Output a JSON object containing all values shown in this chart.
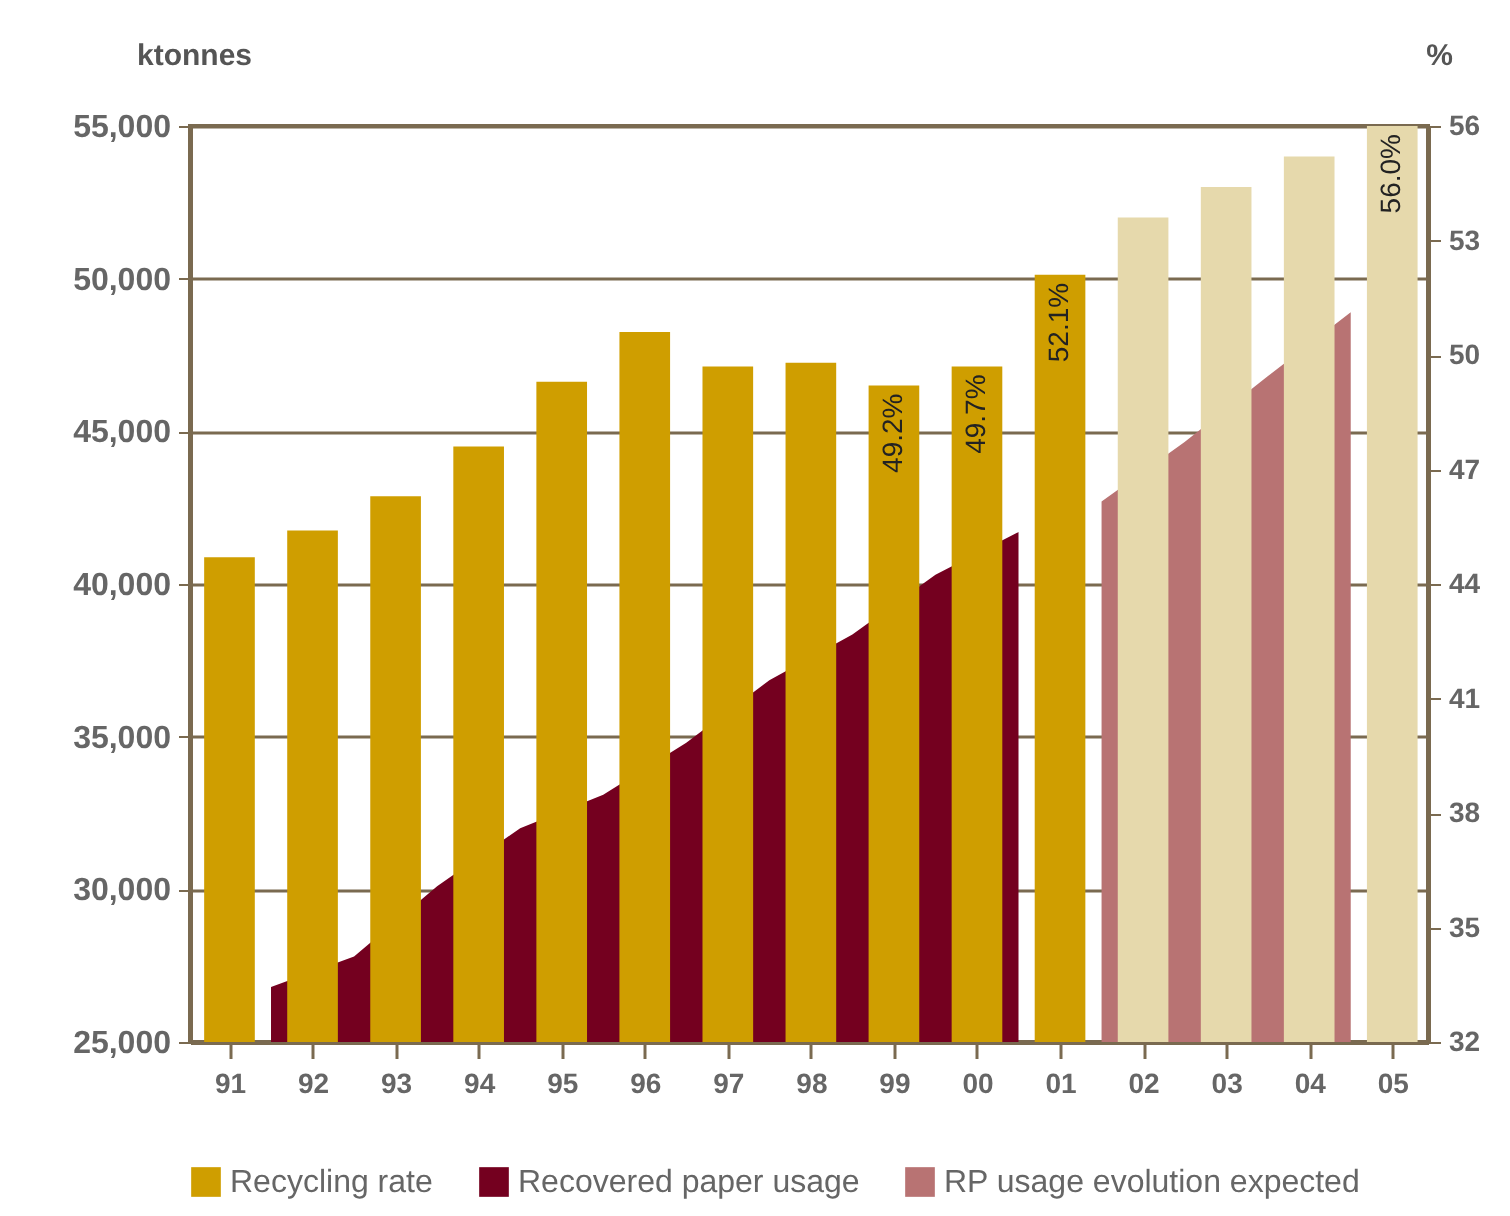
{
  "chart_data": {
    "type": "bar",
    "ylabel": "ktonnes",
    "y2label": "%",
    "x": [
      1991,
      1992,
      1993,
      1994,
      1995,
      1996,
      1997,
      1998,
      1999,
      2000,
      2001,
      2002,
      2003,
      2004,
      2005
    ],
    "xlim": [
      1990.645,
      2005.31
    ],
    "xticks": [
      {
        "value": 1991,
        "label": "91"
      },
      {
        "value": 1992,
        "label": "92"
      },
      {
        "value": 1993,
        "label": "93"
      },
      {
        "value": 1994,
        "label": "94"
      },
      {
        "value": 1995,
        "label": "95"
      },
      {
        "value": 1996,
        "label": "96"
      },
      {
        "value": 1997,
        "label": "97"
      },
      {
        "value": 1998,
        "label": "98"
      },
      {
        "value": 1999,
        "label": "99"
      },
      {
        "value": 2000,
        "label": "00"
      },
      {
        "value": 2001,
        "label": "01"
      },
      {
        "value": 2002,
        "label": "02"
      },
      {
        "value": 2003,
        "label": "03"
      },
      {
        "value": 2004,
        "label": "04"
      },
      {
        "value": 2005,
        "label": "05"
      }
    ],
    "series": [
      {
        "name": "Recycling rate",
        "axis": "y2",
        "color": "#cf9e00",
        "colors": [
          "#cf9e00",
          "#cf9e00",
          "#cf9e00",
          "#cf9e00",
          "#cf9e00",
          "#cf9e00",
          "#cf9e00",
          "#cf9e00",
          "#cf9e00",
          "#cf9e00",
          "#cf9e00",
          "#e6d9ac",
          "#e6d9ac",
          "#e6d9ac",
          "#e6d9ac"
        ],
        "values": [
          44.7,
          45.4,
          46.3,
          47.6,
          49.3,
          50.6,
          49.7,
          49.8,
          49.2,
          49.7,
          52.1,
          53.6,
          54.4,
          55.2,
          56.0
        ],
        "value_labels": [
          null,
          null,
          null,
          null,
          null,
          null,
          null,
          null,
          "49.2%",
          "49.7%",
          "52.1%",
          null,
          null,
          null,
          "56.0%"
        ]
      },
      {
        "name": "Recovered paper usage",
        "type": "area",
        "color": "#74001f",
        "x": [
          1991.5,
          1992.5,
          1993.5,
          1994.5,
          1995.5,
          1996.5,
          1997.5,
          1998.5,
          1999.5,
          2000.5
        ],
        "values": [
          26800,
          27800,
          30100,
          32000,
          33100,
          34800,
          36850,
          38350,
          40300,
          41700
        ]
      },
      {
        "name": "RP usage evolution expected",
        "type": "area",
        "color": "#b87373",
        "x": [
          2001.5,
          2002.5,
          2003.5,
          2004.5
        ],
        "values": [
          42700,
          44650,
          46800,
          48900
        ]
      }
    ],
    "ylim": [
      25000,
      55000
    ],
    "yticks": [
      {
        "value": 25000,
        "label": "25,000"
      },
      {
        "value": 30000,
        "label": "30,000"
      },
      {
        "value": 35000,
        "label": "35,000"
      },
      {
        "value": 40000,
        "label": "40,000"
      },
      {
        "value": 45000,
        "label": "45,000"
      },
      {
        "value": 50000,
        "label": "50,000"
      },
      {
        "value": 55000,
        "label": "55,000"
      }
    ],
    "y2lim": [
      32,
      56
    ],
    "y2ticks": [
      32,
      35,
      38,
      41,
      44,
      47,
      50,
      53,
      56
    ],
    "grid": "y",
    "legend": "bottom"
  }
}
